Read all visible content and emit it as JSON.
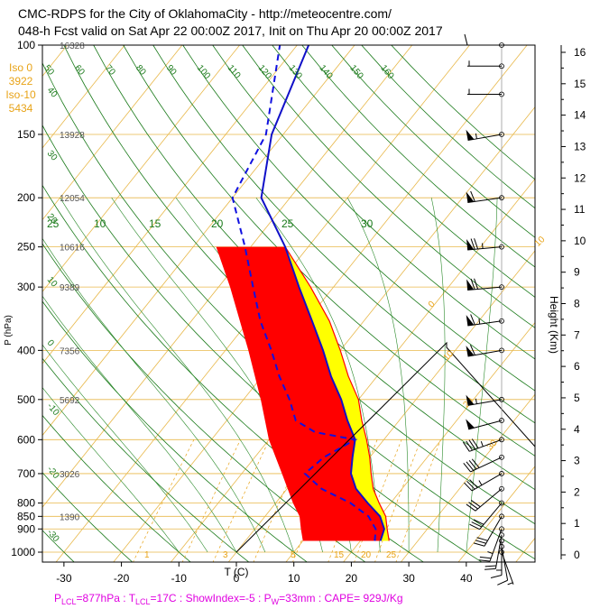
{
  "header": {
    "title_line1": "CMC-RDPS for the City of OklahomaCity - http://meteocentre.com/",
    "title_line2": "048-h Fcst valid on Sat Apr 22 00:00Z 2017, Init on Thu Apr 20 00:00Z 2017"
  },
  "iso_info": {
    "iso0_label": "Iso 0",
    "iso0_value": "3922",
    "iso10_label": "Iso-10",
    "iso10_value": "5434"
  },
  "footer": {
    "text": "P_LCL=877hPa : T_LCL=17C : ShowIndex=-5 : P_W=33mm : CAPE= 929J/Kg",
    "plcl": "P",
    "plcl_sub": "LCL",
    "plcl_val": "=877hPa : T",
    "tlcl_sub": "LCL",
    "tlcl_val": "=17C : ShowIndex=-5 : P",
    "pw_sub": "W",
    "pw_val": "=33mm : CAPE= 929J/Kg"
  },
  "colors": {
    "temperature": "#1010c8",
    "dewpoint": "#1010e0",
    "cape": "#ff0000",
    "cin_positive": "#ffff00",
    "isotherm": "#e8a317",
    "dry_adiabat": "#1a7a1a",
    "footer": "#e000e0"
  },
  "chart_data": {
    "type": "skew-t",
    "xlabel": "T (C)",
    "ylabel": "P (hPa)",
    "y2label": "Height (Km)",
    "xlim": [
      -35,
      50
    ],
    "ylim": [
      1050,
      100
    ],
    "x_ticks": [
      "-30",
      "-20",
      "-10",
      "0",
      "10",
      "20",
      "30",
      "40"
    ],
    "x_tick_values": [
      -30,
      -20,
      -10,
      0,
      10,
      20,
      30,
      40
    ],
    "pressure_ticks": [
      "100",
      "150",
      "200",
      "250",
      "300",
      "400",
      "500",
      "600",
      "700",
      "800",
      "850",
      "900",
      "1000"
    ],
    "pressure_values": [
      100,
      150,
      200,
      250,
      300,
      400,
      500,
      600,
      700,
      800,
      850,
      900,
      1000
    ],
    "geopotential_heights": [
      {
        "p": 100,
        "label": "16328"
      },
      {
        "p": 150,
        "label": "13928"
      },
      {
        "p": 200,
        "label": "12054"
      },
      {
        "p": 250,
        "label": "10616"
      },
      {
        "p": 300,
        "label": "9389"
      },
      {
        "p": 400,
        "label": "7356"
      },
      {
        "p": 500,
        "label": "5692"
      },
      {
        "p": 700,
        "label": "3026"
      },
      {
        "p": 850,
        "label": "1390"
      }
    ],
    "height_ticks": [
      "0",
      "1",
      "2",
      "3",
      "4",
      "5",
      "6",
      "7",
      "8",
      "9",
      "10",
      "11",
      "12",
      "13",
      "14",
      "15",
      "16"
    ],
    "height_values": [
      0,
      1,
      2,
      3,
      4,
      5,
      6,
      7,
      8,
      9,
      10,
      11,
      12,
      13,
      14,
      15,
      16
    ],
    "isotherm_labels": [
      {
        "label": "30",
        "t": 30,
        "p": 115
      },
      {
        "label": "20",
        "t": 20,
        "p": 175
      },
      {
        "label": "10",
        "t": 10,
        "p": 250
      },
      {
        "label": "0",
        "t": 0,
        "p": 330
      },
      {
        "label": "10",
        "t": 10,
        "p": 420
      },
      {
        "label": "20",
        "t": 20,
        "p": 520
      },
      {
        "label": "30",
        "t": 30,
        "p": 630
      }
    ],
    "dry_adiabat_labels": [
      {
        "label": "50",
        "theta": 50
      },
      {
        "label": "60",
        "theta": 60
      },
      {
        "label": "70",
        "theta": 70
      },
      {
        "label": "80",
        "theta": 80
      },
      {
        "label": "90",
        "theta": 90
      },
      {
        "label": "100",
        "theta": 100
      },
      {
        "label": "110",
        "theta": 110
      },
      {
        "label": "120",
        "theta": 120
      },
      {
        "label": "130",
        "theta": 130
      },
      {
        "label": "140",
        "theta": 140
      },
      {
        "label": "150",
        "theta": 150
      },
      {
        "label": "160",
        "theta": 160
      }
    ],
    "mixing_ratio_labels": [
      "25",
      "10",
      "15",
      "20",
      "25",
      "30"
    ],
    "left_side_labels": [
      "40",
      "30",
      "20",
      "10",
      "0",
      "-10",
      "-20",
      "-30"
    ],
    "bottom_labels": [
      "1",
      "3",
      "5",
      "15",
      "20",
      "25"
    ],
    "temperature_profile": [
      {
        "p": 950,
        "t": 23.5
      },
      {
        "p": 900,
        "t": 22.5
      },
      {
        "p": 850,
        "t": 20
      },
      {
        "p": 800,
        "t": 16
      },
      {
        "p": 750,
        "t": 12
      },
      {
        "p": 700,
        "t": 9
      },
      {
        "p": 650,
        "t": 7
      },
      {
        "p": 600,
        "t": 5
      },
      {
        "p": 550,
        "t": 1
      },
      {
        "p": 500,
        "t": -3
      },
      {
        "p": 450,
        "t": -8
      },
      {
        "p": 400,
        "t": -13
      },
      {
        "p": 350,
        "t": -19
      },
      {
        "p": 300,
        "t": -26
      },
      {
        "p": 250,
        "t": -34
      },
      {
        "p": 200,
        "t": -45
      },
      {
        "p": 150,
        "t": -52
      },
      {
        "p": 100,
        "t": -58
      }
    ],
    "dewpoint_profile": [
      {
        "p": 950,
        "t": 22.5
      },
      {
        "p": 900,
        "t": 21
      },
      {
        "p": 850,
        "t": 18
      },
      {
        "p": 800,
        "t": 13
      },
      {
        "p": 750,
        "t": 6
      },
      {
        "p": 700,
        "t": 1
      },
      {
        "p": 650,
        "t": 2
      },
      {
        "p": 600,
        "t": 5
      },
      {
        "p": 580,
        "t": -3
      },
      {
        "p": 550,
        "t": -8
      },
      {
        "p": 500,
        "t": -12
      },
      {
        "p": 450,
        "t": -17
      },
      {
        "p": 400,
        "t": -22
      },
      {
        "p": 350,
        "t": -28
      },
      {
        "p": 300,
        "t": -34
      },
      {
        "p": 250,
        "t": -41
      },
      {
        "p": 200,
        "t": -50
      },
      {
        "p": 150,
        "t": -53
      },
      {
        "p": 100,
        "t": -63
      }
    ],
    "parcel_profile": [
      {
        "p": 950,
        "t": 25
      },
      {
        "p": 900,
        "t": 23
      },
      {
        "p": 850,
        "t": 21
      },
      {
        "p": 800,
        "t": 18
      },
      {
        "p": 750,
        "t": 15
      },
      {
        "p": 700,
        "t": 12.5
      },
      {
        "p": 650,
        "t": 10
      },
      {
        "p": 600,
        "t": 7
      },
      {
        "p": 550,
        "t": 3.5
      },
      {
        "p": 500,
        "t": 0
      },
      {
        "p": 450,
        "t": -5
      },
      {
        "p": 400,
        "t": -10
      },
      {
        "p": 350,
        "t": -16
      },
      {
        "p": 300,
        "t": -24
      },
      {
        "p": 250,
        "t": -34
      }
    ],
    "red_region_left": [
      {
        "p": 950,
        "t": 10
      },
      {
        "p": 900,
        "t": 8
      },
      {
        "p": 850,
        "t": 6
      },
      {
        "p": 800,
        "t": 3
      },
      {
        "p": 700,
        "t": -3
      },
      {
        "p": 600,
        "t": -10
      },
      {
        "p": 500,
        "t": -17
      },
      {
        "p": 400,
        "t": -26
      },
      {
        "p": 300,
        "t": -38
      },
      {
        "p": 250,
        "t": -46
      }
    ],
    "wind_barbs": [
      {
        "p": 1000,
        "speed": 5,
        "dir": 160
      },
      {
        "p": 975,
        "speed": 10,
        "dir": 170
      },
      {
        "p": 950,
        "speed": 15,
        "dir": 180
      },
      {
        "p": 925,
        "speed": 20,
        "dir": 190
      },
      {
        "p": 900,
        "speed": 25,
        "dir": 200
      },
      {
        "p": 850,
        "speed": 30,
        "dir": 210
      },
      {
        "p": 800,
        "speed": 30,
        "dir": 220
      },
      {
        "p": 750,
        "speed": 30,
        "dir": 230
      },
      {
        "p": 700,
        "speed": 35,
        "dir": 240
      },
      {
        "p": 650,
        "speed": 40,
        "dir": 245
      },
      {
        "p": 600,
        "speed": 45,
        "dir": 250
      },
      {
        "p": 550,
        "speed": 50,
        "dir": 255
      },
      {
        "p": 500,
        "speed": 55,
        "dir": 260
      },
      {
        "p": 400,
        "speed": 60,
        "dir": 260
      },
      {
        "p": 350,
        "speed": 65,
        "dir": 262
      },
      {
        "p": 300,
        "speed": 70,
        "dir": 265
      },
      {
        "p": 250,
        "speed": 75,
        "dir": 265
      },
      {
        "p": 200,
        "speed": 60,
        "dir": 262
      },
      {
        "p": 150,
        "speed": 55,
        "dir": 260
      },
      {
        "p": 125,
        "speed": 5,
        "dir": 270
      },
      {
        "p": 110,
        "speed": 5,
        "dir": 270
      },
      {
        "p": 100,
        "speed": 10,
        "dir": 270
      }
    ]
  }
}
